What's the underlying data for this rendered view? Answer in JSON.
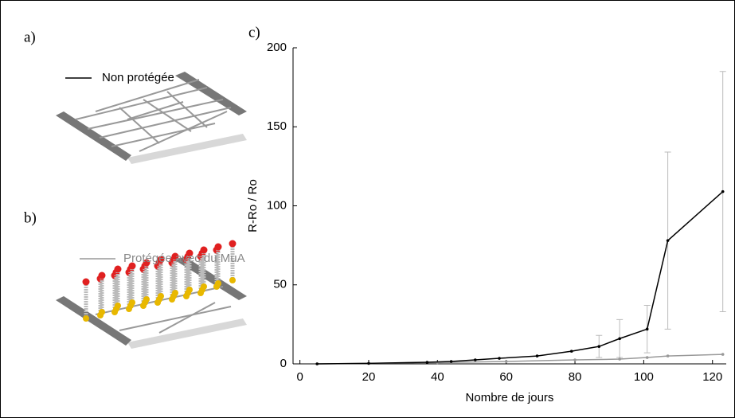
{
  "panel_labels": [
    "a)",
    "b)",
    "c)"
  ],
  "chart_data": {
    "type": "line",
    "xlabel": "Nombre de jours",
    "ylabel": "R-Ro / Ro",
    "xlim": [
      -2,
      124
    ],
    "ylim": [
      0,
      200
    ],
    "xticks": [
      0,
      20,
      40,
      60,
      80,
      100,
      120
    ],
    "yticks": [
      0,
      50,
      100,
      150,
      200
    ],
    "series": [
      {
        "name": "Non protégée",
        "color": "#000000",
        "x": [
          5,
          20,
          37,
          44,
          51,
          58,
          69,
          79,
          87,
          93,
          101,
          107,
          123
        ],
        "values": [
          0,
          0.3,
          1,
          1.5,
          2.5,
          3.5,
          5,
          8,
          11,
          16,
          22,
          78,
          109
        ],
        "errors": [
          null,
          null,
          null,
          null,
          null,
          null,
          null,
          null,
          7,
          12,
          15,
          56,
          76
        ]
      },
      {
        "name": "Protégée avec du MuA",
        "color": "#999999",
        "x": [
          5,
          20,
          40,
          60,
          80,
          93,
          101,
          107,
          123
        ],
        "values": [
          0,
          0.3,
          0.8,
          1.5,
          2.5,
          3,
          4,
          5,
          6
        ]
      }
    ]
  }
}
